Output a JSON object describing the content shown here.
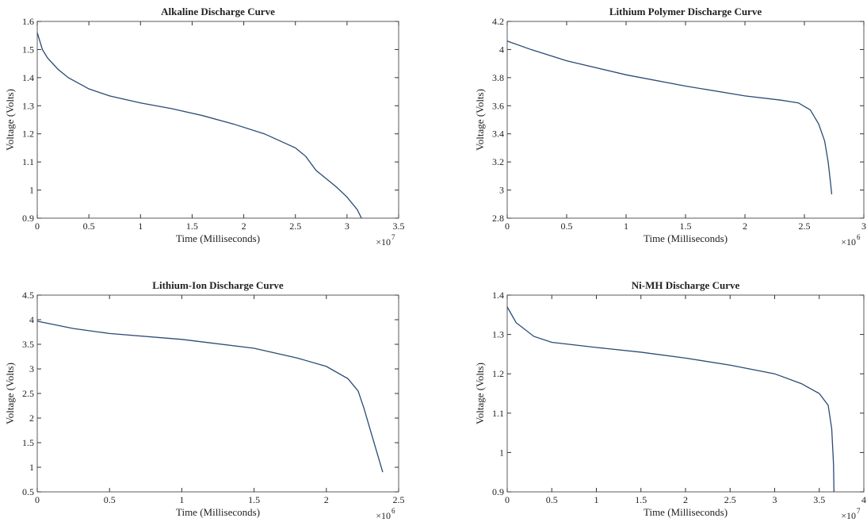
{
  "chart_data": [
    {
      "type": "line",
      "title": "Alkaline Discharge Curve",
      "x_label": "Time (Milliseconds)",
      "y_label": "Voltage (Volts)",
      "x_multiplier": "×10",
      "x_exponent": "7",
      "x": [
        0,
        0.05,
        0.1,
        0.2,
        0.3,
        0.4,
        0.5,
        0.7,
        1.0,
        1.3,
        1.6,
        1.9,
        2.2,
        2.5,
        2.6,
        2.7,
        2.8,
        2.9,
        3.0,
        3.1,
        3.14
      ],
      "series": [
        {
          "name": "Alkaline",
          "color": "#2b4a74",
          "values": [
            1.56,
            1.5,
            1.47,
            1.43,
            1.4,
            1.38,
            1.36,
            1.335,
            1.31,
            1.29,
            1.265,
            1.235,
            1.2,
            1.15,
            1.12,
            1.07,
            1.04,
            1.01,
            0.975,
            0.93,
            0.9
          ]
        }
      ],
      "xlim": [
        0,
        3.5
      ],
      "xticks": [
        0,
        0.5,
        1,
        1.5,
        2,
        2.5,
        3,
        3.5
      ],
      "ylim": [
        0.9,
        1.6
      ],
      "yticks": [
        0.9,
        1,
        1.1,
        1.2,
        1.3,
        1.4,
        1.5,
        1.6
      ]
    },
    {
      "type": "line",
      "title": "Lithium Polymer Discharge Curve",
      "x_label": "Time (Milliseconds)",
      "y_label": "Voltage (Volts)",
      "x_multiplier": "×10",
      "x_exponent": "6",
      "x": [
        0,
        0.2,
        0.5,
        1.0,
        1.5,
        2.0,
        2.3,
        2.45,
        2.55,
        2.62,
        2.67,
        2.7,
        2.72,
        2.73
      ],
      "series": [
        {
          "name": "Lithium Polymer",
          "color": "#2b4a74",
          "values": [
            4.06,
            4.0,
            3.92,
            3.82,
            3.74,
            3.67,
            3.64,
            3.62,
            3.57,
            3.47,
            3.35,
            3.2,
            3.05,
            2.97
          ]
        }
      ],
      "xlim": [
        0,
        3
      ],
      "xticks": [
        0,
        0.5,
        1,
        1.5,
        2,
        2.5,
        3
      ],
      "ylim": [
        2.8,
        4.2
      ],
      "yticks": [
        2.8,
        3,
        3.2,
        3.4,
        3.6,
        3.8,
        4,
        4.2
      ]
    },
    {
      "type": "line",
      "title": "Lithium-Ion Discharge Curve",
      "x_label": "Time (Milliseconds)",
      "y_label": "Voltage (Volts)",
      "x_multiplier": "×10",
      "x_exponent": "6",
      "x": [
        0,
        0.25,
        0.5,
        1.0,
        1.5,
        1.8,
        2.0,
        2.15,
        2.22,
        2.26,
        2.3,
        2.35,
        2.39
      ],
      "series": [
        {
          "name": "Lithium-Ion",
          "color": "#2b4a74",
          "values": [
            3.97,
            3.82,
            3.72,
            3.6,
            3.42,
            3.22,
            3.05,
            2.8,
            2.55,
            2.2,
            1.8,
            1.3,
            0.9
          ]
        }
      ],
      "xlim": [
        0,
        2.5
      ],
      "xticks": [
        0,
        0.5,
        1,
        1.5,
        2,
        2.5
      ],
      "ylim": [
        0.5,
        4.5
      ],
      "yticks": [
        0.5,
        1,
        1.5,
        2,
        2.5,
        3,
        3.5,
        4,
        4.5
      ]
    },
    {
      "type": "line",
      "title": "Ni-MH Discharge Curve",
      "x_label": "Time (Milliseconds)",
      "y_label": "Voltage (Volts)",
      "x_multiplier": "×10",
      "x_exponent": "7",
      "x": [
        0,
        0.1,
        0.3,
        0.5,
        1.0,
        1.5,
        2.0,
        2.5,
        3.0,
        3.3,
        3.5,
        3.6,
        3.64,
        3.66,
        3.665
      ],
      "series": [
        {
          "name": "Ni-MH",
          "color": "#2b4a74",
          "values": [
            1.37,
            1.33,
            1.295,
            1.28,
            1.267,
            1.255,
            1.24,
            1.222,
            1.2,
            1.175,
            1.15,
            1.12,
            1.06,
            0.97,
            0.9
          ]
        }
      ],
      "xlim": [
        0,
        4
      ],
      "xticks": [
        0,
        0.5,
        1,
        1.5,
        2,
        2.5,
        3,
        3.5,
        4
      ],
      "ylim": [
        0.9,
        1.4
      ],
      "yticks": [
        0.9,
        1,
        1.1,
        1.2,
        1.3,
        1.4
      ]
    }
  ]
}
